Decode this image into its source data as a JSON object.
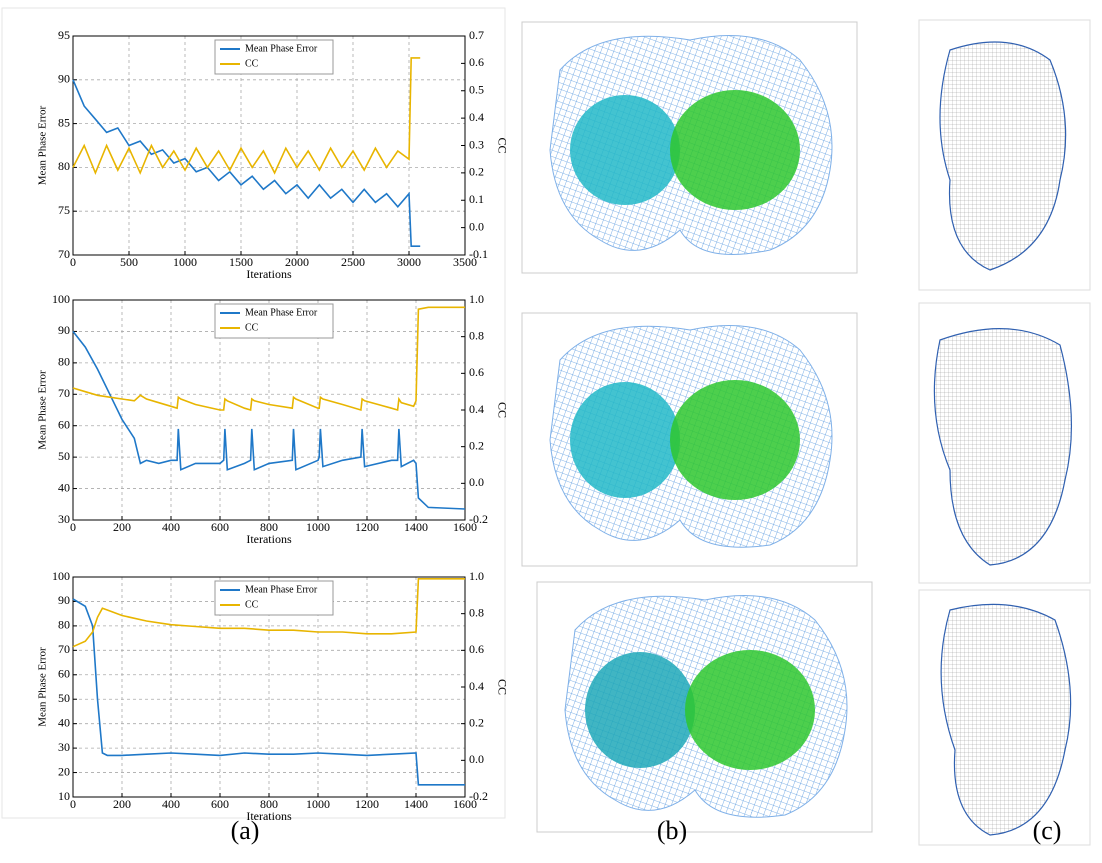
{
  "chart_data": [
    {
      "type": "line",
      "xlabel": "Iterations",
      "ylabel": "Mean Phase Error",
      "y2label": "CC",
      "grid": true,
      "legend": "upper center",
      "x": [
        0,
        100,
        200,
        300,
        400,
        500,
        600,
        700,
        800,
        900,
        1000,
        1100,
        1200,
        1300,
        1400,
        1500,
        1600,
        1700,
        1800,
        1900,
        2000,
        2100,
        2200,
        2300,
        2400,
        2500,
        2600,
        2700,
        2800,
        2900,
        3000,
        3020,
        3100
      ],
      "xlim": [
        0,
        3500
      ],
      "xticks": [
        0,
        500,
        1000,
        1500,
        2000,
        2500,
        3000,
        3500
      ],
      "ylim": [
        70,
        95
      ],
      "yticks": [
        70,
        75,
        80,
        85,
        90,
        95
      ],
      "y2lim": [
        -0.1,
        0.7
      ],
      "y2ticks": [
        -0.1,
        {
          "value": 0,
          "label": "0.0"
        },
        0.1,
        0.2,
        0.3,
        0.4,
        0.5,
        0.6,
        0.7
      ],
      "series": [
        {
          "name": "Mean Phase Error",
          "color": "#1f78c8",
          "axis": "y",
          "values": [
            90,
            87,
            85.5,
            84,
            84.5,
            82.5,
            83,
            81.5,
            82,
            80.5,
            81,
            79.5,
            80,
            78.5,
            79.5,
            78,
            79,
            77.5,
            78.5,
            77,
            78,
            76.5,
            78,
            76.5,
            77.5,
            76,
            77.5,
            76,
            77,
            75.5,
            77,
            71,
            71
          ]
        },
        {
          "name": "CC",
          "color": "#e8b500",
          "axis": "y2",
          "values": [
            0.22,
            0.3,
            0.2,
            0.3,
            0.21,
            0.29,
            0.2,
            0.3,
            0.22,
            0.28,
            0.21,
            0.29,
            0.22,
            0.28,
            0.21,
            0.29,
            0.22,
            0.28,
            0.2,
            0.29,
            0.22,
            0.28,
            0.21,
            0.29,
            0.22,
            0.28,
            0.21,
            0.29,
            0.22,
            0.28,
            0.25,
            0.62,
            0.62
          ]
        }
      ]
    },
    {
      "type": "line",
      "xlabel": "Iterations",
      "ylabel": "Mean Phase Error",
      "y2label": "CC",
      "grid": true,
      "legend": "upper center",
      "x": [
        0,
        50,
        100,
        150,
        200,
        250,
        275,
        300,
        350,
        400,
        425,
        430,
        440,
        500,
        600,
        615,
        620,
        630,
        700,
        725,
        730,
        740,
        800,
        895,
        900,
        910,
        1000,
        1005,
        1010,
        1020,
        1100,
        1175,
        1180,
        1190,
        1300,
        1325,
        1330,
        1340,
        1390,
        1400,
        1410,
        1450,
        1600
      ],
      "xlim": [
        0,
        1600
      ],
      "xticks": [
        0,
        200,
        400,
        600,
        800,
        1000,
        1200,
        1400,
        1600
      ],
      "ylim": [
        30,
        100
      ],
      "yticks": [
        30,
        40,
        50,
        60,
        70,
        80,
        90,
        100
      ],
      "y2lim": [
        -0.2,
        1.0
      ],
      "y2ticks": [
        -0.2,
        {
          "value": 0,
          "label": "0.0"
        },
        0.2,
        0.4,
        0.6,
        0.8,
        {
          "value": 1,
          "label": "1.0"
        }
      ],
      "series": [
        {
          "name": "Mean Phase Error",
          "color": "#1f78c8",
          "axis": "y",
          "values": [
            90,
            85,
            78,
            70,
            62,
            56,
            48,
            49,
            48,
            49,
            49,
            59,
            46,
            48,
            48,
            49,
            59,
            46,
            48,
            49,
            59,
            46,
            48,
            49,
            59,
            46,
            49,
            50,
            59,
            47,
            49,
            50,
            59,
            47,
            49,
            49,
            59,
            47,
            49,
            48,
            37,
            34,
            33.5
          ]
        },
        {
          "name": "CC",
          "color": "#e8b500",
          "axis": "y2",
          "values": [
            0.52,
            0.5,
            0.48,
            0.47,
            0.46,
            0.45,
            0.48,
            0.46,
            0.44,
            0.42,
            0.41,
            0.47,
            0.46,
            0.43,
            0.4,
            0.4,
            0.46,
            0.45,
            0.41,
            0.4,
            0.46,
            0.45,
            0.43,
            0.41,
            0.47,
            0.46,
            0.41,
            0.41,
            0.47,
            0.46,
            0.43,
            0.4,
            0.46,
            0.45,
            0.41,
            0.4,
            0.46,
            0.44,
            0.42,
            0.45,
            0.95,
            0.96,
            0.96
          ]
        }
      ]
    },
    {
      "type": "line",
      "xlabel": "Iterations",
      "ylabel": "Mean Phase Error",
      "y2label": "CC",
      "grid": true,
      "legend": "upper center",
      "x": [
        0,
        50,
        80,
        100,
        120,
        140,
        200,
        300,
        400,
        500,
        600,
        700,
        800,
        900,
        1000,
        1100,
        1200,
        1300,
        1400,
        1410,
        1600
      ],
      "xlim": [
        0,
        1600
      ],
      "xticks": [
        0,
        200,
        400,
        600,
        800,
        1000,
        1200,
        1400,
        1600
      ],
      "ylim": [
        10,
        100
      ],
      "yticks": [
        10,
        20,
        30,
        40,
        50,
        60,
        70,
        80,
        90,
        100
      ],
      "y2lim": [
        -0.2,
        1.0
      ],
      "y2ticks": [
        -0.2,
        {
          "value": 0,
          "label": "0.0"
        },
        0.2,
        0.4,
        0.6,
        0.8,
        {
          "value": 1,
          "label": "1.0"
        }
      ],
      "series": [
        {
          "name": "Mean Phase Error",
          "color": "#1f78c8",
          "axis": "y",
          "values": [
            91,
            88,
            80,
            50,
            28,
            27,
            27,
            27.5,
            28,
            27.5,
            27,
            28,
            27.5,
            27.5,
            28,
            27.5,
            27,
            27.5,
            28,
            15,
            15
          ]
        },
        {
          "name": "CC",
          "color": "#e8b500",
          "axis": "y2",
          "values": [
            0.62,
            0.65,
            0.7,
            0.78,
            0.83,
            0.82,
            0.79,
            0.76,
            0.74,
            0.73,
            0.72,
            0.72,
            0.71,
            0.71,
            0.7,
            0.7,
            0.69,
            0.69,
            0.7,
            0.99,
            0.99
          ]
        }
      ]
    }
  ],
  "panel_labels": [
    "(a)",
    "(b)",
    "(c)"
  ]
}
